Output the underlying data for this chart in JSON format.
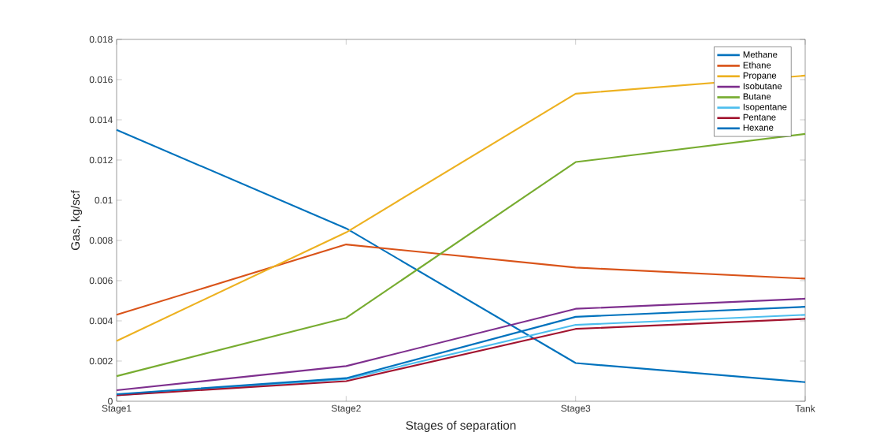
{
  "chart_data": {
    "type": "line",
    "xlabel": "Stages of separation",
    "ylabel": "Gas, kg/scf",
    "categories": [
      "Stage1",
      "Stage2",
      "Stage3",
      "Tank"
    ],
    "ylim": [
      0,
      0.018
    ],
    "yticks": [
      0,
      0.002,
      0.004,
      0.006,
      0.008,
      0.01,
      0.012,
      0.014,
      0.016,
      0.018
    ],
    "grid": false,
    "legend": "top right",
    "marker": "none",
    "line_style": "solid",
    "series": [
      {
        "name": "Methane",
        "color": "#0072bd",
        "values": [
          0.0135,
          0.0086,
          0.0019,
          0.00095
        ]
      },
      {
        "name": "Ethane",
        "color": "#d95319",
        "values": [
          0.0043,
          0.0078,
          0.00665,
          0.0061
        ]
      },
      {
        "name": "Propane",
        "color": "#edb120",
        "values": [
          0.003,
          0.0084,
          0.0153,
          0.0162
        ]
      },
      {
        "name": "Isobutane",
        "color": "#7e2f8e",
        "values": [
          0.00055,
          0.00175,
          0.0046,
          0.0051
        ]
      },
      {
        "name": "Butane",
        "color": "#77ac30",
        "values": [
          0.00125,
          0.00415,
          0.0119,
          0.0133
        ]
      },
      {
        "name": "Isopentane",
        "color": "#4dbeee",
        "values": [
          0.0003,
          0.0011,
          0.0038,
          0.0043
        ]
      },
      {
        "name": "Pentane",
        "color": "#a2142f",
        "values": [
          0.0003,
          0.001,
          0.0036,
          0.0041
        ]
      },
      {
        "name": "Hexane",
        "color": "#0072bd",
        "values": [
          0.00035,
          0.00115,
          0.0042,
          0.0047
        ]
      }
    ]
  }
}
